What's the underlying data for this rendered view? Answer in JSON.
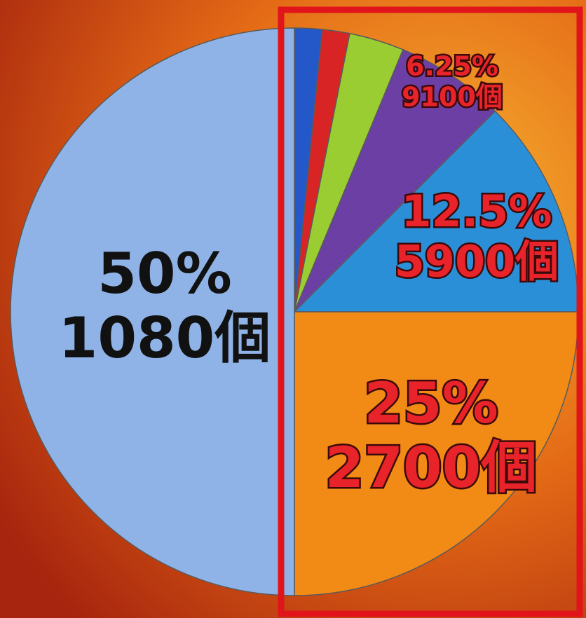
{
  "chart_data": {
    "type": "pie",
    "values": [
      1.5625,
      1.5625,
      3.125,
      6.25,
      12.5,
      25,
      50
    ],
    "value_labels": [
      null,
      null,
      null,
      "6.25%",
      "12.5%",
      "25%",
      "50%"
    ],
    "count_labels": [
      null,
      null,
      null,
      "9100個",
      "5900個",
      "2700個",
      "1080個"
    ],
    "colors": [
      "#2458c8",
      "#d82424",
      "#9acd32",
      "#6b3fa3",
      "#2b8fd8",
      "#f28a16",
      "#8fb3e6"
    ],
    "label_colors": [
      null,
      null,
      null,
      "#e8232a",
      "#e8232a",
      "#e8232a",
      "#111111"
    ]
  }
}
